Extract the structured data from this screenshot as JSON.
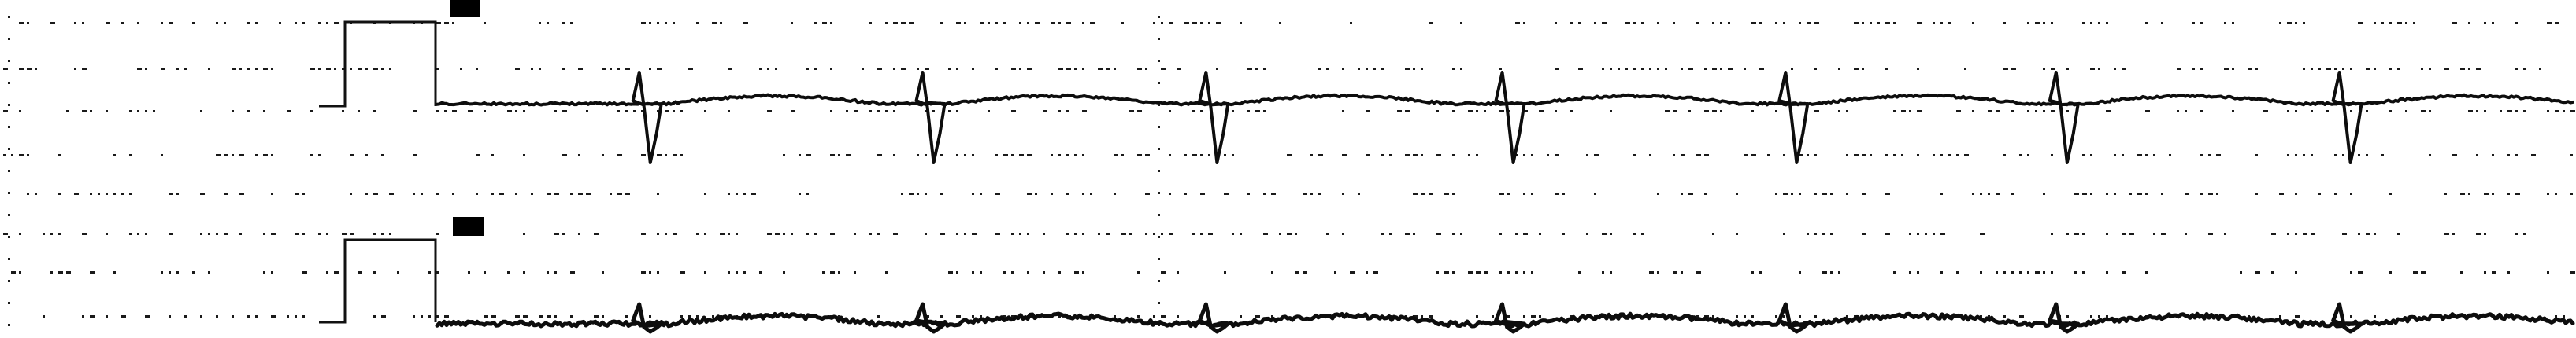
{
  "strip": {
    "leads": [
      {
        "name": "",
        "beats": [
          0.25,
          0.36,
          0.47,
          0.585,
          0.695,
          0.8,
          0.91
        ],
        "polarity": "down",
        "baseline_noise": "low"
      },
      {
        "name": "",
        "beats": [
          0.25,
          0.36,
          0.47,
          0.585,
          0.695,
          0.8,
          0.91
        ],
        "polarity": "up",
        "baseline_noise": "high"
      }
    ],
    "colors": {
      "paper": "#ffffff",
      "ink": "#0d0d0d"
    }
  }
}
